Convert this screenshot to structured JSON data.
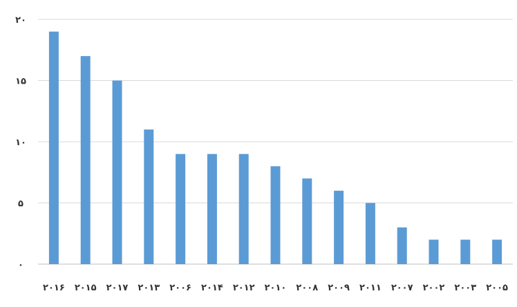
{
  "chart_data": {
    "type": "bar",
    "title": "",
    "xlabel": "",
    "ylabel": "",
    "categories": [
      "۲۰۱۶",
      "۲۰۱۵",
      "۲۰۱۷",
      "۲۰۱۳",
      "۲۰۰۶",
      "۲۰۱۴",
      "۲۰۱۲",
      "۲۰۱۰",
      "۲۰۰۸",
      "۲۰۰۹",
      "۲۰۱۱",
      "۲۰۰۷",
      "۲۰۰۲",
      "۲۰۰۳",
      "۲۰۰۵"
    ],
    "values": [
      19,
      17,
      15,
      11,
      9,
      9,
      9,
      8,
      7,
      6,
      5,
      3,
      2,
      2,
      2
    ],
    "ylim": [
      0,
      20
    ],
    "yticks": [
      0,
      5,
      10,
      15,
      20
    ],
    "ytick_labels": [
      "۰",
      "۵",
      "۱۰",
      "۱۵",
      "۲۰"
    ],
    "grid": true,
    "legend": "none",
    "bar_color": "#5b9bd5",
    "grid_color": "#d9d9d9"
  }
}
